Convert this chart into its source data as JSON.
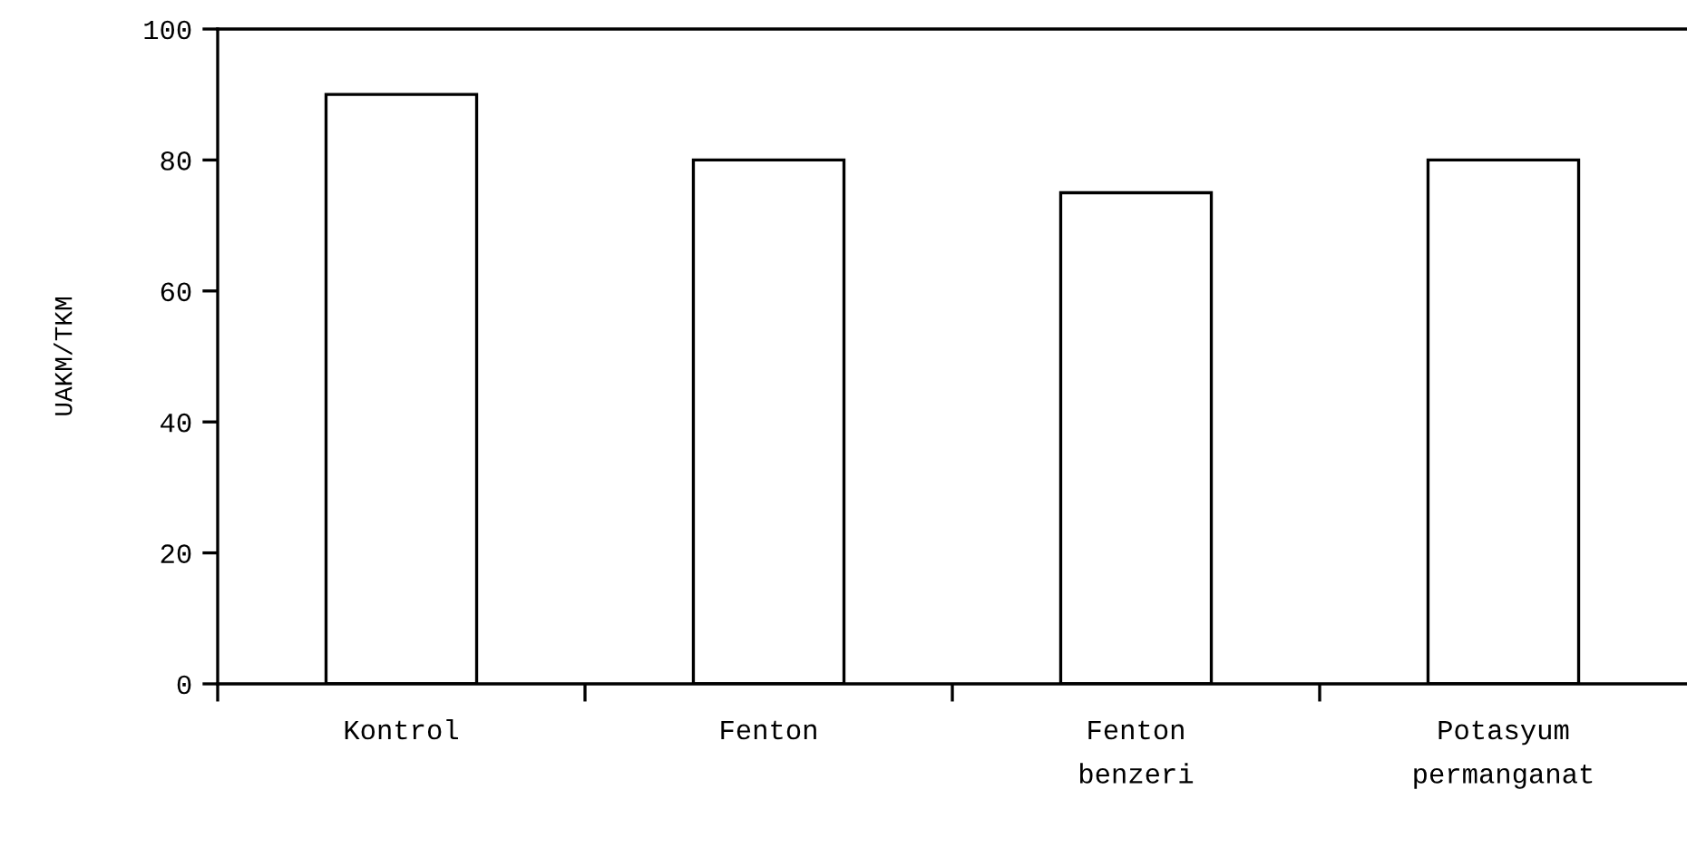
{
  "chart_data": {
    "type": "bar",
    "ylabel": "UAKM/TKM",
    "categories": [
      "Kontrol",
      "Fenton",
      "Fenton\nbenzeri",
      "Potasyum\npermanganat"
    ],
    "values": [
      90,
      80,
      75,
      80
    ],
    "color": "#ffffff",
    "ylim": [
      0,
      100
    ],
    "yticks": [
      0,
      20,
      40,
      60,
      80,
      100
    ],
    "grid": false
  }
}
